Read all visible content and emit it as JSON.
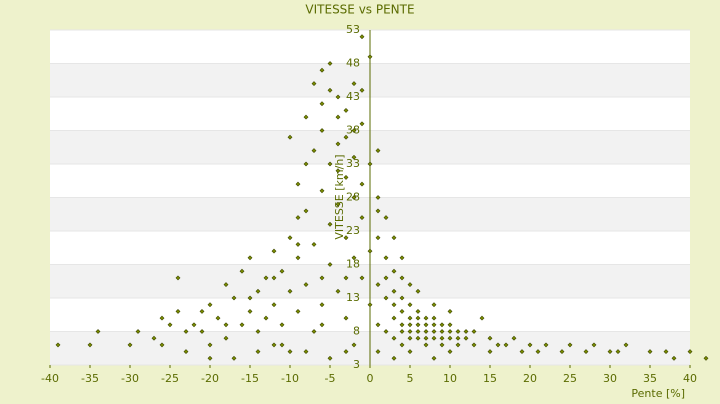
{
  "chart_data": {
    "type": "scatter",
    "title": "VITESSE vs PENTE",
    "x_label": "Pente [%]",
    "y_label": "VITESSE [km/h]",
    "xlim": [
      -40,
      40
    ],
    "ylim": [
      3,
      53
    ],
    "xticks": [
      -40,
      -35,
      -30,
      -25,
      -20,
      -15,
      -10,
      -5,
      0,
      5,
      10,
      15,
      20,
      25,
      30,
      35,
      40
    ],
    "yticks": [
      3,
      8,
      13,
      18,
      23,
      28,
      33,
      38,
      43,
      48,
      53
    ],
    "grid": true,
    "color": "#7a8c00",
    "x": [
      -39,
      -35,
      -34,
      -29,
      -27,
      -26,
      -25,
      -24,
      -24,
      -23,
      -22,
      -21,
      -20,
      -20,
      -19,
      -18,
      -18,
      -17,
      -16,
      -16,
      -15,
      -15,
      -14,
      -14,
      -13,
      -13,
      -12,
      -12,
      -11,
      -11,
      -10,
      -10,
      -10,
      -9,
      -9,
      -9,
      -8,
      -8,
      -8,
      -7,
      -7,
      -7,
      -7,
      -6,
      -6,
      -6,
      -6,
      -6,
      -5,
      -5,
      -5,
      -5,
      -5,
      -4,
      -4,
      -4,
      -4,
      -4,
      -3,
      -3,
      -3,
      -3,
      -3,
      -2,
      -2,
      -2,
      -2,
      -2,
      -1,
      -1,
      -1,
      -1,
      -1,
      0,
      0,
      0,
      1,
      1,
      1,
      1,
      1,
      2,
      2,
      2,
      2,
      3,
      3,
      3,
      3,
      3,
      4,
      4,
      4,
      4,
      4,
      5,
      5,
      5,
      5,
      5,
      6,
      6,
      6,
      6,
      6,
      7,
      7,
      7,
      7,
      7,
      8,
      8,
      8,
      8,
      9,
      9,
      9,
      9,
      10,
      10,
      10,
      11,
      11,
      11,
      12,
      12,
      13,
      13,
      14,
      15,
      15,
      16,
      17,
      18,
      19,
      20,
      21,
      22,
      24,
      25,
      27,
      28,
      30,
      31,
      32,
      35,
      37,
      38,
      40,
      42,
      -30,
      -20,
      -10,
      -5,
      -3,
      3,
      5,
      8,
      10,
      -23,
      -17,
      -12,
      -8,
      -15,
      -12,
      -9,
      -6,
      -3,
      0,
      2,
      4,
      6,
      8,
      10,
      4,
      5,
      3,
      1,
      1,
      -1,
      -2,
      -4,
      -8,
      -9,
      -6,
      -11,
      -14,
      -18,
      -21,
      -26
    ],
    "values": [
      6,
      6,
      8,
      8,
      7,
      6,
      9,
      11,
      16,
      8,
      9,
      8,
      12,
      6,
      10,
      15,
      7,
      13,
      9,
      17,
      11,
      19,
      8,
      14,
      16,
      10,
      20,
      12,
      9,
      17,
      22,
      14,
      37,
      30,
      11,
      19,
      26,
      40,
      15,
      35,
      8,
      45,
      21,
      42,
      29,
      12,
      38,
      47,
      44,
      33,
      24,
      18,
      48,
      40,
      36,
      27,
      14,
      43,
      31,
      37,
      22,
      10,
      41,
      34,
      28,
      19,
      6,
      45,
      30,
      25,
      16,
      39,
      52,
      49,
      20,
      33,
      28,
      22,
      15,
      9,
      5,
      19,
      13,
      8,
      25,
      14,
      10,
      7,
      12,
      17,
      11,
      9,
      13,
      8,
      6,
      10,
      12,
      8,
      9,
      7,
      9,
      11,
      8,
      7,
      10,
      9,
      8,
      7,
      10,
      6,
      8,
      9,
      7,
      10,
      8,
      7,
      9,
      6,
      7,
      8,
      9,
      7,
      8,
      6,
      8,
      7,
      8,
      6,
      10,
      7,
      5,
      6,
      6,
      7,
      5,
      6,
      5,
      6,
      5,
      6,
      5,
      6,
      5,
      5,
      6,
      5,
      5,
      4,
      5,
      4,
      6,
      4,
      5,
      4,
      5,
      4,
      5,
      4,
      5,
      5,
      4,
      6,
      5,
      13,
      16,
      21,
      16,
      16,
      12,
      16,
      16,
      14,
      12,
      11,
      19,
      15,
      22,
      35,
      26,
      44,
      38,
      32,
      33,
      25,
      9,
      6,
      5,
      9,
      11,
      10
    ]
  }
}
